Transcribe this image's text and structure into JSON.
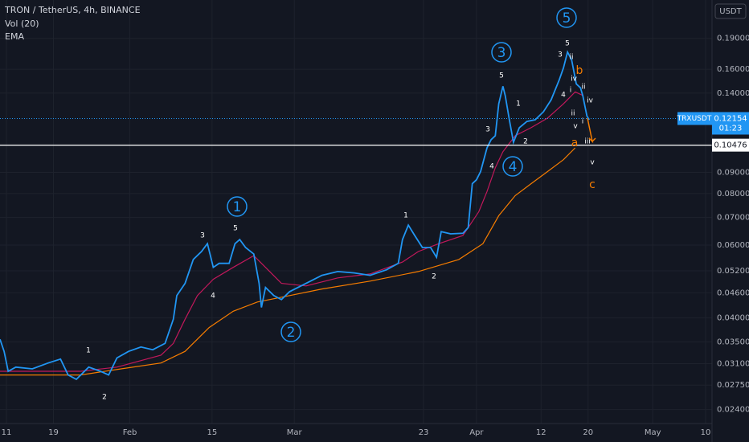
{
  "chart_data": {
    "type": "line",
    "title": "TRON / TetherUS, 4h, BINANCE",
    "indicators": [
      "Vol (20)",
      "EMA"
    ],
    "currency": "USDT",
    "symbol": "TRXUSDT",
    "last_price": 0.12154,
    "countdown": "01:23",
    "level": 0.10476,
    "log_scale": true,
    "grid": true,
    "xlim": [
      -1.1,
      120.1
    ],
    "xticks": [
      {
        "value": 0,
        "label": "11"
      },
      {
        "value": 8,
        "label": "19"
      },
      {
        "value": 21,
        "label": "Feb"
      },
      {
        "value": 35,
        "label": "15"
      },
      {
        "value": 49,
        "label": "Mar"
      },
      {
        "value": 71,
        "label": "23"
      },
      {
        "value": 80,
        "label": "Apr"
      },
      {
        "value": 91,
        "label": "12"
      },
      {
        "value": 99,
        "label": "20"
      },
      {
        "value": 110,
        "label": "May"
      },
      {
        "value": 119,
        "label": "10"
      }
    ],
    "ylim": [
      0.0222,
      0.2353
    ],
    "yticks": [
      {
        "value": 0.19,
        "label": "0.19000"
      },
      {
        "value": 0.16,
        "label": "0.16000"
      },
      {
        "value": 0.14,
        "label": "0.14000"
      },
      {
        "value": 0.09,
        "label": "0.09000"
      },
      {
        "value": 0.08,
        "label": "0.08000"
      },
      {
        "value": 0.07,
        "label": "0.07000"
      },
      {
        "value": 0.06,
        "label": "0.06000"
      },
      {
        "value": 0.052,
        "label": "0.05200"
      },
      {
        "value": 0.046,
        "label": "0.04600"
      },
      {
        "value": 0.04,
        "label": "0.04000"
      },
      {
        "value": 0.035,
        "label": "0.03500"
      },
      {
        "value": 0.031,
        "label": "0.03100"
      },
      {
        "value": 0.0275,
        "label": "0.02750"
      },
      {
        "value": 0.024,
        "label": "0.02400"
      }
    ],
    "series": [
      {
        "color": "#2196f3",
        "x": [
          -1.1,
          -0.4,
          0.3,
          1.6,
          4.4,
          7.1,
          9.2,
          10.5,
          11.9,
          14,
          16,
          17.4,
          18.8,
          20.8,
          22.9,
          24.9,
          27,
          28.4,
          29,
          30.4,
          31.8,
          33.2,
          34.2,
          35.2,
          36.2,
          37.9,
          38.9,
          39.7,
          40.7,
          42.1,
          43,
          43.4,
          44.1,
          45.5,
          46.8,
          48.2,
          51,
          53.7,
          56.4,
          59.2,
          61.9,
          64.7,
          66.7,
          67.4,
          68.4,
          69.5,
          70.8,
          72.2,
          73.2,
          74,
          75.6,
          77.7,
          78.6,
          79.3,
          80,
          80.7,
          81.8,
          82.5,
          83.2,
          83.8,
          84.5,
          84.9,
          85.6,
          86.3,
          87.3,
          88.6,
          90,
          91.4,
          92.7,
          94.1,
          94.8,
          95.5,
          96.2,
          97,
          97.7,
          98.1,
          98.8,
          99.2
        ],
        "values": [
          0.0355,
          0.0332,
          0.0297,
          0.0304,
          0.0301,
          0.0311,
          0.0318,
          0.0291,
          0.0284,
          0.0304,
          0.0297,
          0.0291,
          0.032,
          0.0332,
          0.034,
          0.0335,
          0.0347,
          0.0397,
          0.0453,
          0.0485,
          0.0554,
          0.0579,
          0.0605,
          0.053,
          0.0542,
          0.0542,
          0.0605,
          0.0619,
          0.0592,
          0.0571,
          0.0485,
          0.0424,
          0.0474,
          0.0453,
          0.0443,
          0.0463,
          0.0485,
          0.0507,
          0.0518,
          0.0514,
          0.0507,
          0.0523,
          0.0542,
          0.0619,
          0.0671,
          0.0633,
          0.0592,
          0.0592,
          0.0561,
          0.0647,
          0.0639,
          0.0641,
          0.0662,
          0.0845,
          0.0864,
          0.0904,
          0.1032,
          0.108,
          0.1104,
          0.1319,
          0.1455,
          0.138,
          0.1207,
          0.1065,
          0.1155,
          0.1196,
          0.1207,
          0.1262,
          0.1348,
          0.1508,
          0.1611,
          0.1761,
          0.1685,
          0.1474,
          0.1442,
          0.138,
          0.1233,
          0.1207
        ]
      },
      {
        "color": "#c2185b",
        "x": [
          -1.1,
          12.6,
          18.8,
          26.3,
          28.4,
          30.4,
          32.5,
          35.2,
          38.6,
          42.1,
          44.1,
          46.8,
          51,
          56.4,
          61.9,
          67.4,
          70.1,
          73.6,
          77.7,
          80.4,
          81.8,
          83.2,
          84.5,
          86.6,
          89.3,
          92.1,
          94.8,
          96.8,
          98.2
        ],
        "values": [
          0.0297,
          0.0297,
          0.0304,
          0.0325,
          0.0347,
          0.0397,
          0.0453,
          0.0496,
          0.053,
          0.0566,
          0.053,
          0.0485,
          0.0478,
          0.05,
          0.0511,
          0.0546,
          0.0579,
          0.0605,
          0.0633,
          0.0723,
          0.0809,
          0.0924,
          0.101,
          0.1104,
          0.1155,
          0.1218,
          0.1319,
          0.141,
          0.138
        ]
      },
      {
        "color": "#f57c00",
        "x": [
          -1.1,
          12.6,
          19.5,
          26.3,
          30.4,
          34.5,
          38.6,
          42.7,
          48.2,
          53.7,
          61.9,
          70.1,
          77,
          81.1,
          83.8,
          86.6,
          89.3,
          92.1,
          94.8,
          96.8
        ],
        "values": [
          0.0291,
          0.0291,
          0.0301,
          0.0311,
          0.0332,
          0.0379,
          0.0415,
          0.0437,
          0.0453,
          0.047,
          0.0491,
          0.0518,
          0.0554,
          0.0605,
          0.0707,
          0.0791,
          0.0845,
          0.0904,
          0.0966,
          0.1032
        ]
      }
    ],
    "annotations": [
      "1",
      "2",
      "3",
      "4",
      "5",
      "1",
      "2",
      "3",
      "4",
      "5",
      "1",
      "2",
      "3",
      "4",
      "5",
      "1",
      "2",
      "3",
      "4",
      "5",
      "ii",
      "iv",
      "i",
      "ii",
      "iv",
      "ii",
      "v",
      "i",
      "iii",
      "v",
      "b",
      "a",
      "c"
    ]
  }
}
